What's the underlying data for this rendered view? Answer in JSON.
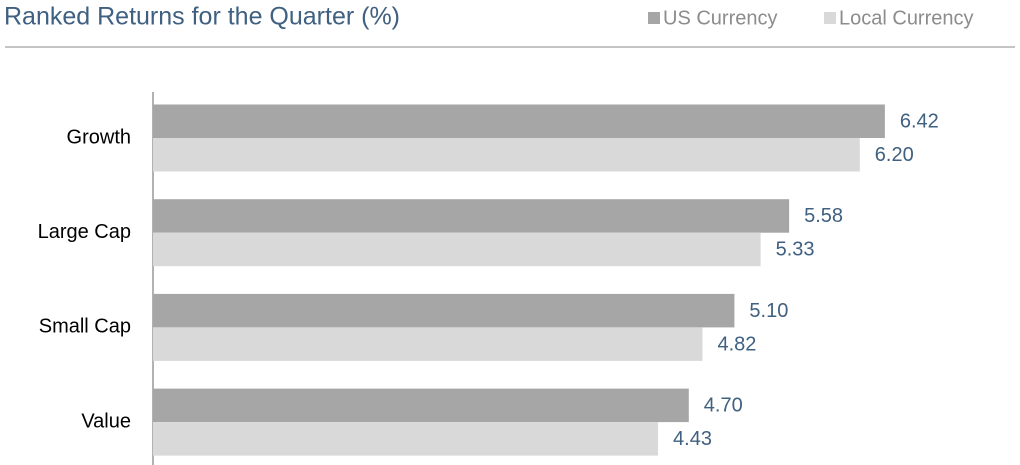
{
  "chart_data": {
    "type": "hbar",
    "title": "Ranked Returns for the Quarter (%)",
    "categories": [
      "Growth",
      "Large Cap",
      "Small Cap",
      "Value"
    ],
    "series": [
      {
        "name": "US Currency",
        "color": "#a6a6a6",
        "values": [
          6.42,
          5.58,
          5.1,
          4.7
        ],
        "value_labels": [
          "6.42",
          "5.58",
          "5.10",
          "4.70"
        ]
      },
      {
        "name": "Local Currency",
        "color": "#d9d9d9",
        "values": [
          6.2,
          5.33,
          4.82,
          4.43
        ],
        "value_labels": [
          "6.20",
          "5.33",
          "4.82",
          "4.43"
        ]
      }
    ],
    "xlim": [
      0,
      7.5
    ],
    "legend": "top-right"
  }
}
